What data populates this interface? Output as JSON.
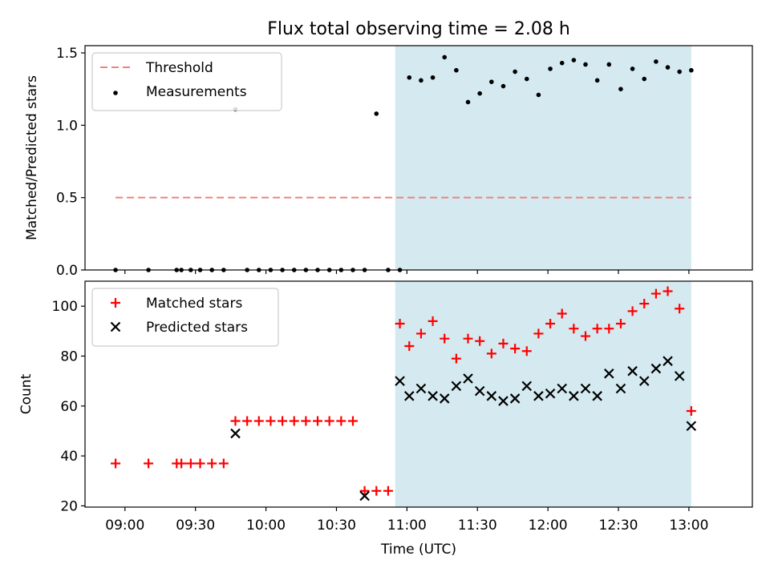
{
  "chart_data": [
    {
      "type": "scatter",
      "title": "Flux total observing time = 2.08 h",
      "xlabel": "",
      "ylabel": "Matched/Predicted stars",
      "xlim": [
        "08:43",
        "13:27"
      ],
      "ylim": [
        0,
        1.55
      ],
      "yticks": [
        0.0,
        0.5,
        1.0,
        1.5
      ],
      "ytick_labels": [
        "0.0",
        "0.5",
        "1.0",
        "1.5"
      ],
      "legend_position": "top-left",
      "shaded_region": {
        "x": [
          "10:55",
          "13:01"
        ],
        "color": "#d4eaf0"
      },
      "series": [
        {
          "name": "Threshold",
          "kind": "dashed-line",
          "color": "#f08080",
          "x": [
            "08:56",
            "13:01"
          ],
          "y": [
            0.5,
            0.5
          ]
        },
        {
          "name": "Measurements",
          "kind": "points",
          "color": "#000000",
          "x": [
            "08:56",
            "09:10",
            "09:22",
            "09:24",
            "09:28",
            "09:32",
            "09:37",
            "09:42",
            "09:47",
            "09:52",
            "09:57",
            "10:02",
            "10:07",
            "10:12",
            "10:17",
            "10:22",
            "10:27",
            "10:32",
            "10:37",
            "10:42",
            "10:47",
            "10:52",
            "10:57",
            "11:01",
            "11:06",
            "11:11",
            "11:16",
            "11:21",
            "11:26",
            "11:31",
            "11:36",
            "11:41",
            "11:46",
            "11:51",
            "11:56",
            "12:01",
            "12:06",
            "12:11",
            "12:16",
            "12:21",
            "12:26",
            "12:31",
            "12:36",
            "12:41",
            "12:46",
            "12:51",
            "12:56",
            "13:01"
          ],
          "y": [
            0,
            0,
            0,
            0,
            0,
            0,
            0,
            0,
            1.11,
            0,
            0,
            0,
            0,
            0,
            0,
            0,
            0,
            0,
            0,
            0,
            1.08,
            0,
            0,
            1.33,
            1.31,
            1.33,
            1.47,
            1.38,
            1.16,
            1.22,
            1.3,
            1.27,
            1.37,
            1.32,
            1.21,
            1.39,
            1.43,
            1.45,
            1.42,
            1.31,
            1.42,
            1.25,
            1.39,
            1.32,
            1.44,
            1.4,
            1.37,
            1.38
          ]
        }
      ]
    },
    {
      "type": "scatter",
      "title": "",
      "xlabel": "Time (UTC)",
      "ylabel": "Count",
      "xlim": [
        "08:43",
        "13:27"
      ],
      "ylim": [
        19.5,
        110
      ],
      "yticks": [
        20,
        40,
        60,
        80,
        100
      ],
      "ytick_labels": [
        "20",
        "40",
        "60",
        "80",
        "100"
      ],
      "xticks": [
        "09:00",
        "09:30",
        "10:00",
        "10:30",
        "11:00",
        "11:30",
        "12:00",
        "12:30",
        "13:00"
      ],
      "xtick_labels": [
        "09:00",
        "09:30",
        "10:00",
        "10:30",
        "11:00",
        "11:30",
        "12:00",
        "12:30",
        "13:00"
      ],
      "legend_position": "top-left",
      "shaded_region": {
        "x": [
          "10:55",
          "13:01"
        ],
        "color": "#d4eaf0"
      },
      "series": [
        {
          "name": "Matched stars",
          "kind": "plus",
          "color": "#ff0000",
          "x": [
            "08:56",
            "09:10",
            "09:22",
            "09:24",
            "09:28",
            "09:32",
            "09:37",
            "09:42",
            "09:47",
            "09:52",
            "09:57",
            "10:02",
            "10:07",
            "10:12",
            "10:17",
            "10:22",
            "10:27",
            "10:32",
            "10:37",
            "10:42",
            "10:47",
            "10:52",
            "10:57",
            "11:01",
            "11:06",
            "11:11",
            "11:16",
            "11:21",
            "11:26",
            "11:31",
            "11:36",
            "11:41",
            "11:46",
            "11:51",
            "11:56",
            "12:01",
            "12:06",
            "12:11",
            "12:16",
            "12:21",
            "12:26",
            "12:31",
            "12:36",
            "12:41",
            "12:46",
            "12:51",
            "12:56",
            "13:01"
          ],
          "y": [
            37,
            37,
            37,
            37,
            37,
            37,
            37,
            37,
            54,
            54,
            54,
            54,
            54,
            54,
            54,
            54,
            54,
            54,
            54,
            26,
            26,
            26,
            93,
            84,
            89,
            94,
            87,
            79,
            87,
            86,
            81,
            85,
            83,
            82,
            89,
            93,
            97,
            91,
            88,
            91,
            91,
            93,
            98,
            101,
            105,
            106,
            99,
            58
          ]
        },
        {
          "name": "Predicted stars",
          "kind": "x",
          "color": "#000000",
          "x": [
            "09:47",
            "10:42",
            "10:57",
            "11:01",
            "11:06",
            "11:11",
            "11:16",
            "11:21",
            "11:26",
            "11:31",
            "11:36",
            "11:41",
            "11:46",
            "11:51",
            "11:56",
            "12:01",
            "12:06",
            "12:11",
            "12:16",
            "12:21",
            "12:26",
            "12:31",
            "12:36",
            "12:41",
            "12:46",
            "12:51",
            "12:56",
            "13:01"
          ],
          "y": [
            49,
            24,
            70,
            64,
            67,
            64,
            63,
            68,
            71,
            66,
            64,
            62,
            63,
            68,
            64,
            65,
            67,
            64,
            67,
            64,
            73,
            67,
            74,
            70,
            75,
            78,
            72,
            52
          ]
        }
      ]
    }
  ]
}
